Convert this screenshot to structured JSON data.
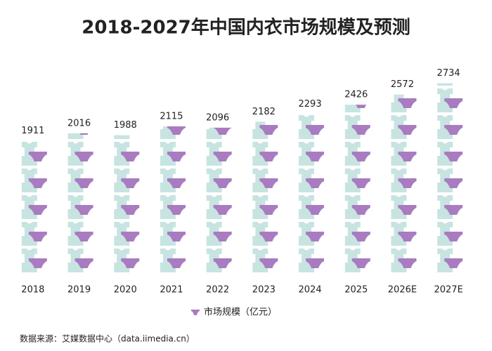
{
  "chart_data": {
    "type": "bar",
    "title": "2018-2027年中国内衣市场规模及预测",
    "categories": [
      "2018",
      "2019",
      "2020",
      "2021",
      "2022",
      "2023",
      "2024",
      "2025",
      "2026E",
      "2027E"
    ],
    "series": [
      {
        "name": "市场规模（亿元）",
        "color": "#a97bc0",
        "values": [
          1911,
          2016,
          1988,
          2115,
          2096,
          2182,
          2293,
          2426,
          2572,
          2734
        ]
      }
    ],
    "ylim": [
      0,
      2800
    ],
    "source": "数据来源：艾媒数据中心（data.iimedia.cn）"
  }
}
